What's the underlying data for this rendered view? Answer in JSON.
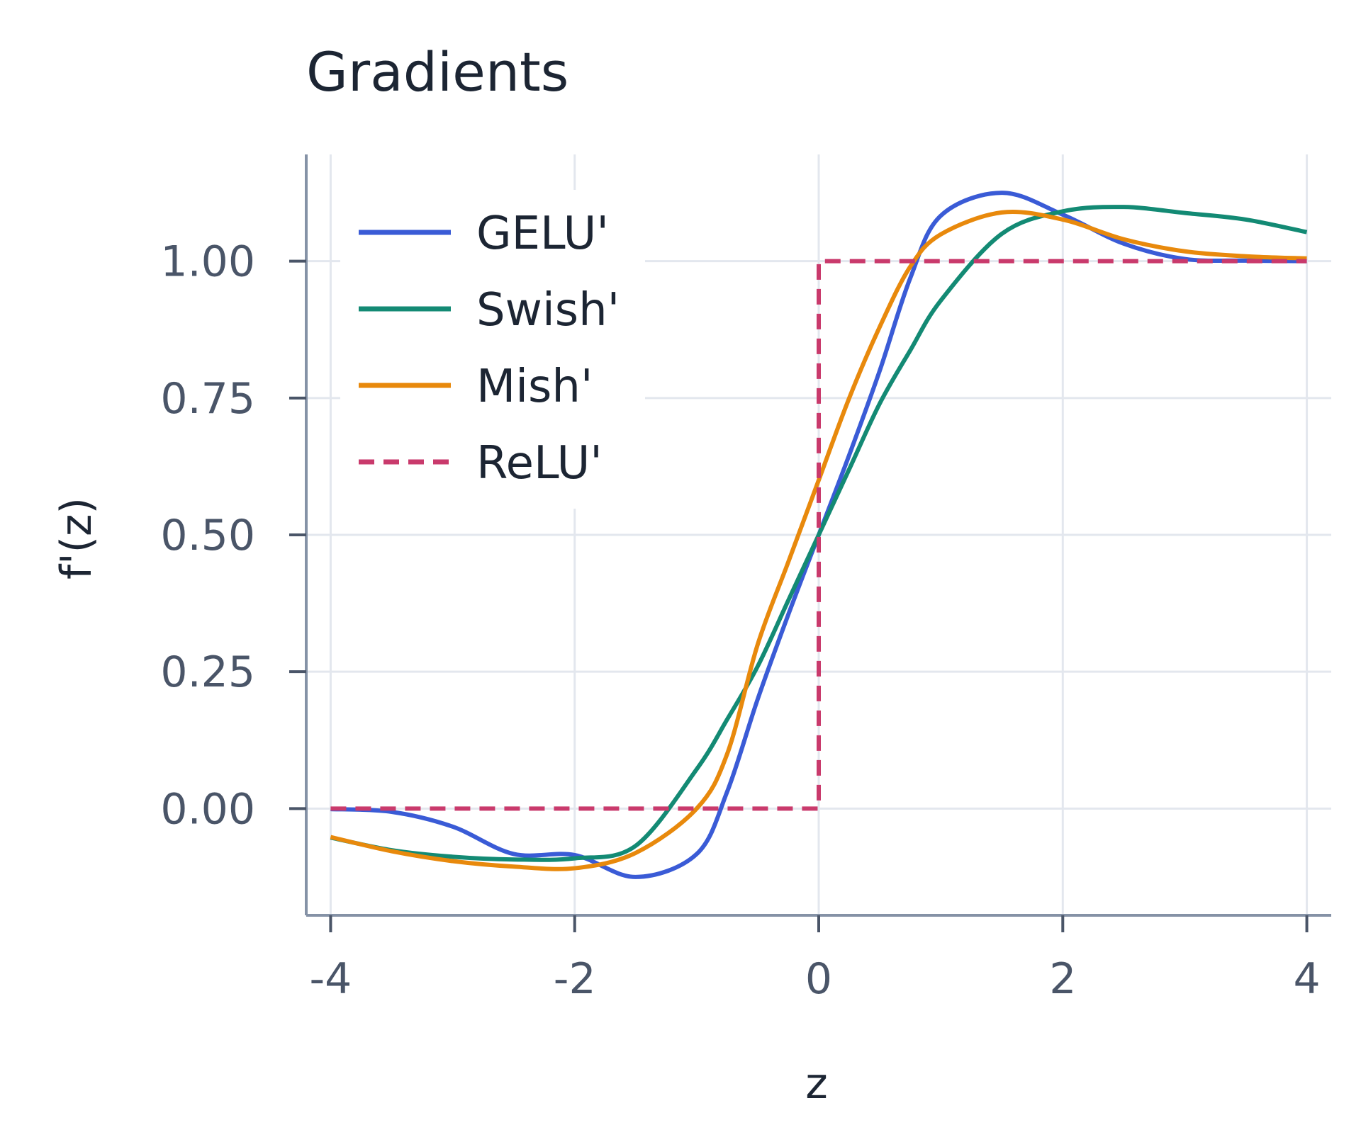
{
  "chart_data": {
    "type": "line",
    "title": "Gradients",
    "xlabel": "z",
    "ylabel": "f'(z)",
    "xlim": [
      -4.2,
      4.2
    ],
    "ylim": [
      -0.195,
      1.195
    ],
    "xticks": [
      -4,
      -2,
      0,
      2,
      4
    ],
    "xtick_labels": [
      "-4",
      "-2",
      "0",
      "2",
      "4"
    ],
    "yticks": [
      0.0,
      0.25,
      0.5,
      0.75,
      1.0
    ],
    "ytick_labels": [
      "0.00",
      "0.25",
      "0.50",
      "0.75",
      "1.00"
    ],
    "grid": true,
    "legend_position": "top-left",
    "x": [
      -4,
      -3.5,
      -3,
      -2.5,
      -2,
      -1.5,
      -1,
      -0.75,
      -0.5,
      -0.25,
      0,
      0.25,
      0.5,
      0.75,
      1,
      1.5,
      2,
      2.5,
      3,
      3.5,
      4
    ],
    "series": [
      {
        "name": "GELU'",
        "color": "#3a5bd6",
        "dash": "solid",
        "values": [
          -0.001,
          -0.006,
          -0.033,
          -0.083,
          -0.085,
          -0.125,
          -0.083,
          0.031,
          0.2,
          0.354,
          0.5,
          0.646,
          0.8,
          0.969,
          1.083,
          1.125,
          1.085,
          1.032,
          1.004,
          1.001,
          1.0
        ]
      },
      {
        "name": "Swish'",
        "color": "#138a74",
        "dash": "solid",
        "values": [
          -0.053,
          -0.076,
          -0.088,
          -0.093,
          -0.091,
          -0.068,
          0.072,
          0.163,
          0.26,
          0.38,
          0.5,
          0.62,
          0.74,
          0.837,
          0.928,
          1.05,
          1.091,
          1.099,
          1.088,
          1.076,
          1.053
        ]
      },
      {
        "name": "Mish'",
        "color": "#e8890c",
        "dash": "solid",
        "values": [
          -0.052,
          -0.078,
          -0.096,
          -0.106,
          -0.109,
          -0.081,
          0.0,
          0.1,
          0.3,
          0.45,
          0.6,
          0.75,
          0.88,
          0.99,
          1.049,
          1.089,
          1.076,
          1.04,
          1.018,
          1.009,
          1.005
        ]
      },
      {
        "name": "ReLU'",
        "color": "#c93a6c",
        "dash": "dashed",
        "values": [
          0,
          0,
          0,
          0,
          0,
          0,
          0,
          0,
          0,
          0,
          0,
          1,
          1,
          1,
          1,
          1,
          1,
          1,
          1,
          1,
          1
        ]
      }
    ]
  }
}
